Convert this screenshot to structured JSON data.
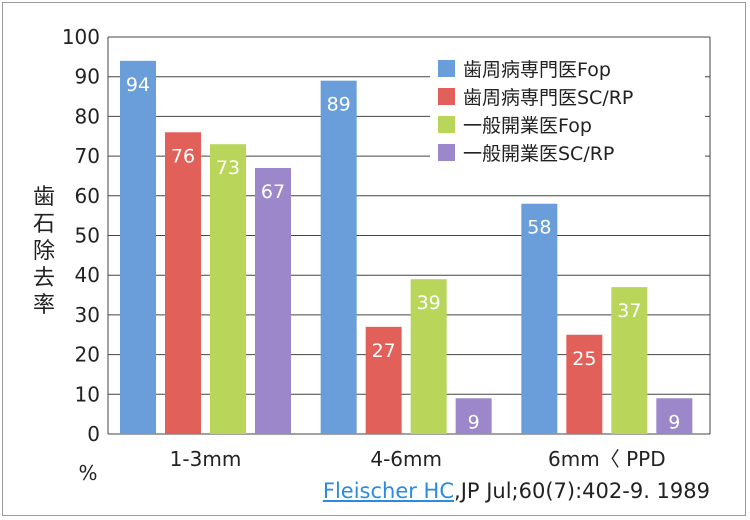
{
  "chart_data": {
    "type": "bar",
    "categories": [
      "1-3mm",
      "4-6mm",
      "6mm〈 PPD"
    ],
    "series": [
      {
        "name": "歯周病専門医Fop",
        "color": "#6a9edb",
        "values": [
          94,
          89,
          58
        ]
      },
      {
        "name": "歯周病専門医SC/RP",
        "color": "#e2605a",
        "values": [
          76,
          27,
          25
        ]
      },
      {
        "name": "一般開業医Fop",
        "color": "#b9d65b",
        "values": [
          73,
          39,
          37
        ]
      },
      {
        "name": "一般開業医SC/RP",
        "color": "#9b87c9",
        "values": [
          67,
          9,
          9
        ]
      }
    ],
    "ylabel": "歯石除去率",
    "yunit": "%",
    "ylim": [
      0,
      100
    ],
    "yticks": [
      0,
      10,
      20,
      30,
      40,
      50,
      60,
      70,
      80,
      90,
      100
    ],
    "grid": true,
    "legend": "top-right"
  },
  "source": {
    "author_link": "Fleischer HC",
    "citation": ",JP Jul;60(7):402-9. 1989"
  }
}
